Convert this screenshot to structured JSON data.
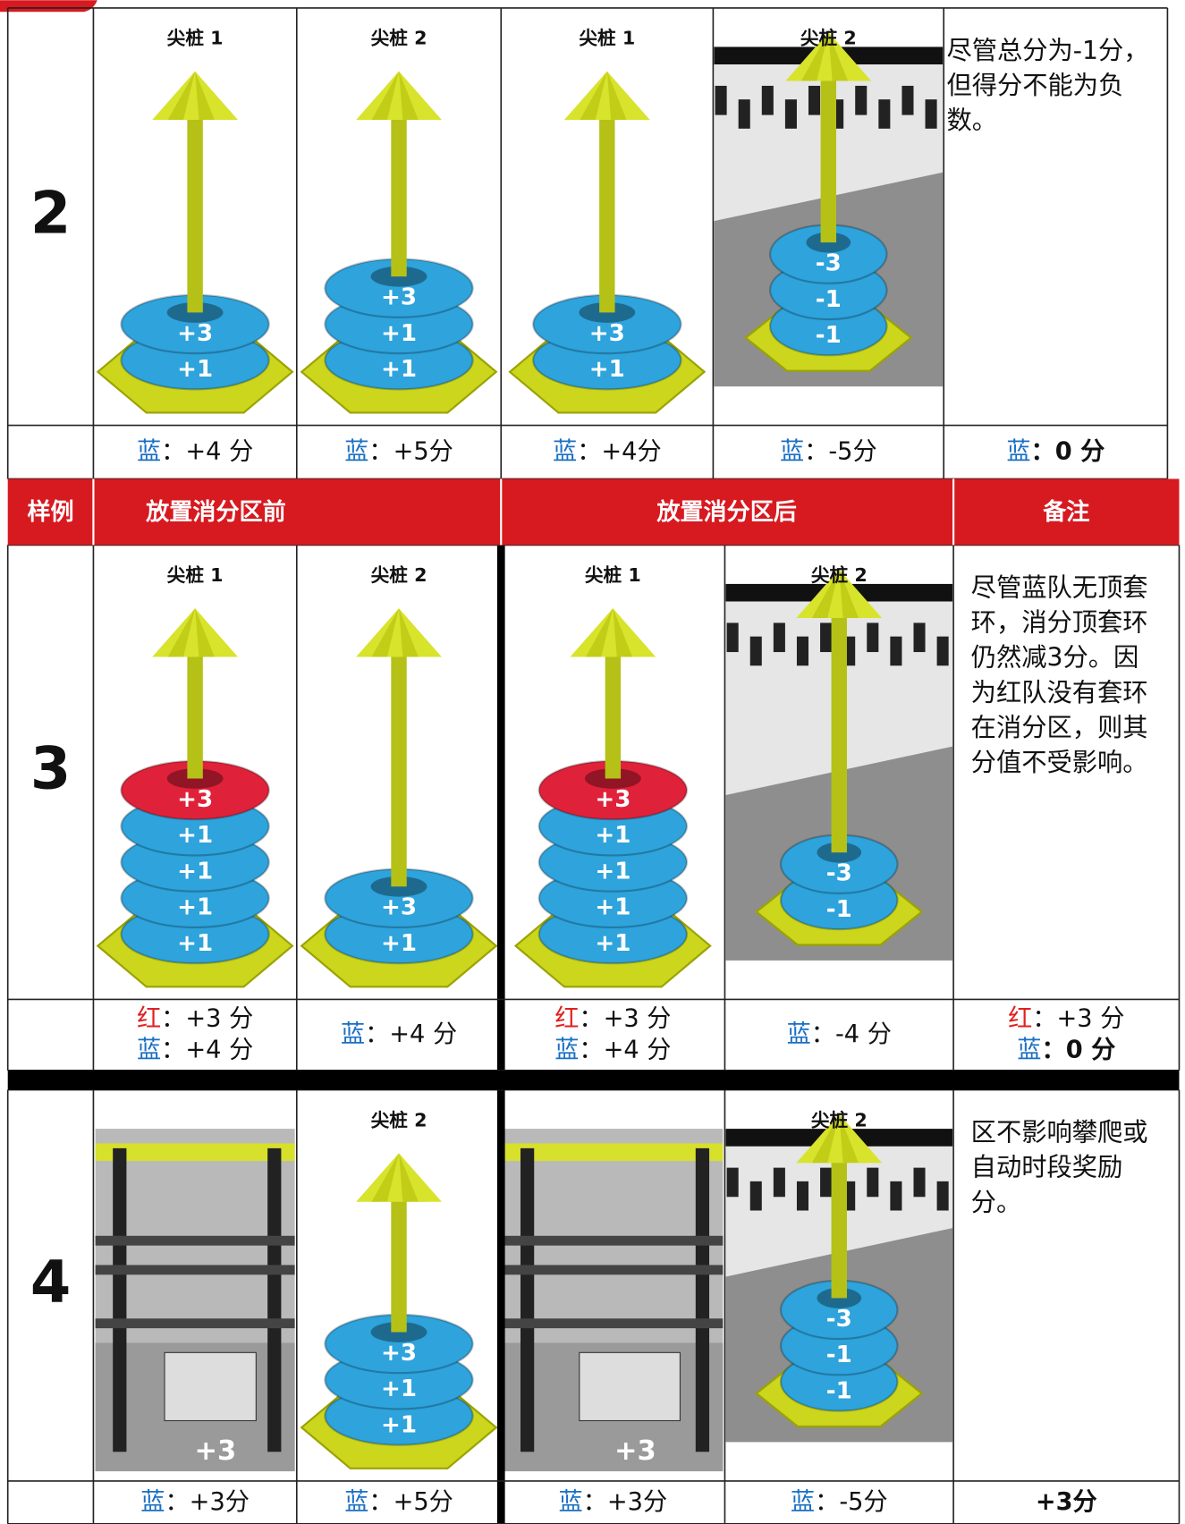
{
  "header": {
    "sample": "样例",
    "before": "放置消分区前",
    "after": "放置消分区后",
    "notes": "备注"
  },
  "examples": [
    {
      "number": "2",
      "panels": [
        {
          "kind": "stake",
          "stake": "尖桩 1",
          "rings": [
            {
              "label": "+3",
              "color": "#2ea3dc"
            },
            {
              "label": "+1",
              "color": "#2ea3dc"
            }
          ]
        },
        {
          "kind": "stake",
          "stake": "尖桩 2",
          "rings": [
            {
              "label": "+3",
              "color": "#2ea3dc"
            },
            {
              "label": "+1",
              "color": "#2ea3dc"
            },
            {
              "label": "+1",
              "color": "#2ea3dc"
            }
          ]
        },
        {
          "kind": "stake",
          "stake": "尖桩 1",
          "rings": [
            {
              "label": "+3",
              "color": "#2ea3dc"
            },
            {
              "label": "+1",
              "color": "#2ea3dc"
            }
          ]
        },
        {
          "kind": "field",
          "stake": "尖桩 2",
          "rings": [
            {
              "label": "-3",
              "color": "#2ea3dc"
            },
            {
              "label": "-1",
              "color": "#2ea3dc"
            },
            {
              "label": "-1",
              "color": "#2ea3dc"
            }
          ]
        }
      ],
      "scores": [
        [
          {
            "team": "蓝",
            "color": "#1a6fc4",
            "score": "：+4 分",
            "bold": false
          }
        ],
        [
          {
            "team": "蓝",
            "color": "#1a6fc4",
            "score": "：+5分",
            "bold": false
          }
        ],
        [
          {
            "team": "蓝",
            "color": "#1a6fc4",
            "score": "：+4分",
            "bold": false
          }
        ],
        [
          {
            "team": "蓝",
            "color": "#1a6fc4",
            "score": "：-5分",
            "bold": false
          }
        ],
        [
          {
            "team": "蓝",
            "color": "#1a6fc4",
            "score": "：0 分",
            "bold": true
          }
        ]
      ],
      "note": [
        "尽管总分为-1分，",
        "但得分不能为负",
        "数。"
      ]
    },
    {
      "number": "3",
      "panels": [
        {
          "kind": "stake",
          "stake": "尖桩 1",
          "rings": [
            {
              "label": "+3",
              "color": "#e0213a"
            },
            {
              "label": "+1",
              "color": "#2ea3dc"
            },
            {
              "label": "+1",
              "color": "#2ea3dc"
            },
            {
              "label": "+1",
              "color": "#2ea3dc"
            },
            {
              "label": "+1",
              "color": "#2ea3dc"
            }
          ]
        },
        {
          "kind": "stake",
          "stake": "尖桩 2",
          "rings": [
            {
              "label": "+3",
              "color": "#2ea3dc"
            },
            {
              "label": "+1",
              "color": "#2ea3dc"
            }
          ]
        },
        {
          "kind": "stake",
          "stake": "尖桩 1",
          "rings": [
            {
              "label": "+3",
              "color": "#e0213a"
            },
            {
              "label": "+1",
              "color": "#2ea3dc"
            },
            {
              "label": "+1",
              "color": "#2ea3dc"
            },
            {
              "label": "+1",
              "color": "#2ea3dc"
            },
            {
              "label": "+1",
              "color": "#2ea3dc"
            }
          ]
        },
        {
          "kind": "field",
          "stake": "尖桩 2",
          "rings": [
            {
              "label": "-3",
              "color": "#2ea3dc"
            },
            {
              "label": "-1",
              "color": "#2ea3dc"
            }
          ]
        }
      ],
      "scores": [
        [
          {
            "team": "红",
            "color": "#e02020",
            "score": "：+3 分",
            "bold": false
          },
          {
            "team": "蓝",
            "color": "#1a6fc4",
            "score": "：+4 分",
            "bold": false
          }
        ],
        [
          {
            "team": "蓝",
            "color": "#1a6fc4",
            "score": "：+4 分",
            "bold": false
          }
        ],
        [
          {
            "team": "红",
            "color": "#e02020",
            "score": "：+3 分",
            "bold": false
          },
          {
            "team": "蓝",
            "color": "#1a6fc4",
            "score": "：+4 分",
            "bold": false
          }
        ],
        [
          {
            "team": "蓝",
            "color": "#1a6fc4",
            "score": "：-4 分",
            "bold": false
          }
        ],
        [
          {
            "team": "红",
            "color": "#e02020",
            "score": "：+3 分",
            "bold": false
          },
          {
            "team": "蓝",
            "color": "#1a6fc4",
            "score": "：0 分",
            "bold": true
          }
        ]
      ],
      "note": [
        "尽管蓝队无顶套",
        "环，消分顶套环",
        "仍然减3分。因",
        "为红队没有套环",
        "在消分区，则其",
        "分值不受影响。"
      ]
    },
    {
      "number": "4",
      "panels": [
        {
          "kind": "robot",
          "label": "+3"
        },
        {
          "kind": "stake",
          "stake": "尖桩 2",
          "rings": [
            {
              "label": "+3",
              "color": "#2ea3dc"
            },
            {
              "label": "+1",
              "color": "#2ea3dc"
            },
            {
              "label": "+1",
              "color": "#2ea3dc"
            }
          ]
        },
        {
          "kind": "robot",
          "label": "+3"
        },
        {
          "kind": "field",
          "stake": "尖桩 2",
          "rings": [
            {
              "label": "-3",
              "color": "#2ea3dc"
            },
            {
              "label": "-1",
              "color": "#2ea3dc"
            },
            {
              "label": "-1",
              "color": "#2ea3dc"
            }
          ]
        }
      ],
      "scores": [
        [
          {
            "team": "蓝",
            "color": "#1a6fc4",
            "score": "：+3分",
            "bold": false
          }
        ],
        [
          {
            "team": "蓝",
            "color": "#1a6fc4",
            "score": "：+5分",
            "bold": false
          }
        ],
        [
          {
            "team": "蓝",
            "color": "#1a6fc4",
            "score": "：+3分",
            "bold": false
          }
        ],
        [
          {
            "team": "蓝",
            "color": "#1a6fc4",
            "score": "：-5分",
            "bold": false
          }
        ],
        [
          {
            "score": "+3分",
            "bold": true
          }
        ]
      ],
      "note": [
        "区不影响攀爬或",
        "自动时段奖励",
        "分。"
      ]
    }
  ]
}
